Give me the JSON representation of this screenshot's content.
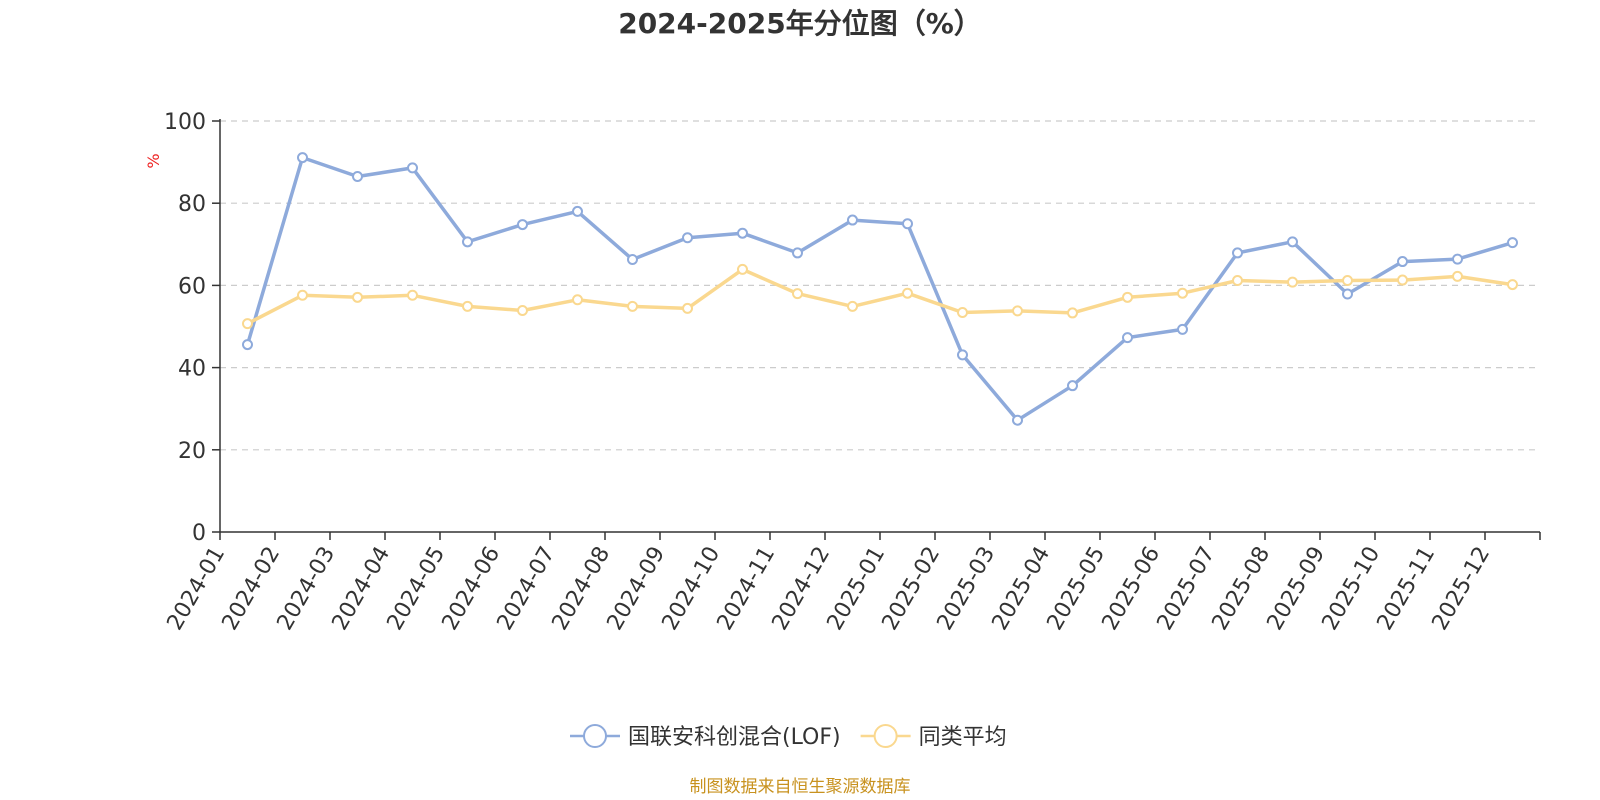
{
  "chart_data": {
    "type": "line",
    "title": "2024-2025年分位图（%）",
    "ylabel": "%",
    "ylim": [
      0,
      100
    ],
    "yticks": [
      0,
      20,
      40,
      60,
      80,
      100
    ],
    "categories": [
      "2024-01",
      "2024-02",
      "2024-03",
      "2024-04",
      "2024-05",
      "2024-06",
      "2024-07",
      "2024-08",
      "2024-09",
      "2024-10",
      "2024-11",
      "2024-12",
      "2025-01",
      "2025-02",
      "2025-03",
      "2025-04",
      "2025-05",
      "2025-06",
      "2025-07",
      "2025-08",
      "2025-09",
      "2025-10",
      "2025-11",
      "2025-12"
    ],
    "grid": true,
    "legend_position": "bottom-center",
    "series": [
      {
        "name": "国联安科创混合(LOF)",
        "color": "#8eaadb",
        "values": [
          45.6,
          91.1,
          86.5,
          88.6,
          70.6,
          74.8,
          78.0,
          66.3,
          71.6,
          72.7,
          67.9,
          75.9,
          75.0,
          43.1,
          27.2,
          35.6,
          47.3,
          49.3,
          67.9,
          70.6,
          57.9,
          65.8,
          66.4,
          70.4
        ]
      },
      {
        "name": "同类平均",
        "color": "#fad88f",
        "values": [
          50.7,
          57.6,
          57.1,
          57.6,
          54.9,
          53.9,
          56.5,
          54.9,
          54.4,
          63.9,
          58.0,
          54.9,
          58.1,
          53.4,
          53.8,
          53.3,
          57.1,
          58.1,
          61.2,
          60.8,
          61.2,
          61.3,
          62.2,
          60.2
        ]
      }
    ]
  },
  "footer": {
    "source_text": "制图数据来自恒生聚源数据库",
    "source_color": "#c8921f"
  },
  "colors": {
    "ylabel": "#ee2222",
    "axis": "#333333",
    "grid": "#cccccc"
  }
}
